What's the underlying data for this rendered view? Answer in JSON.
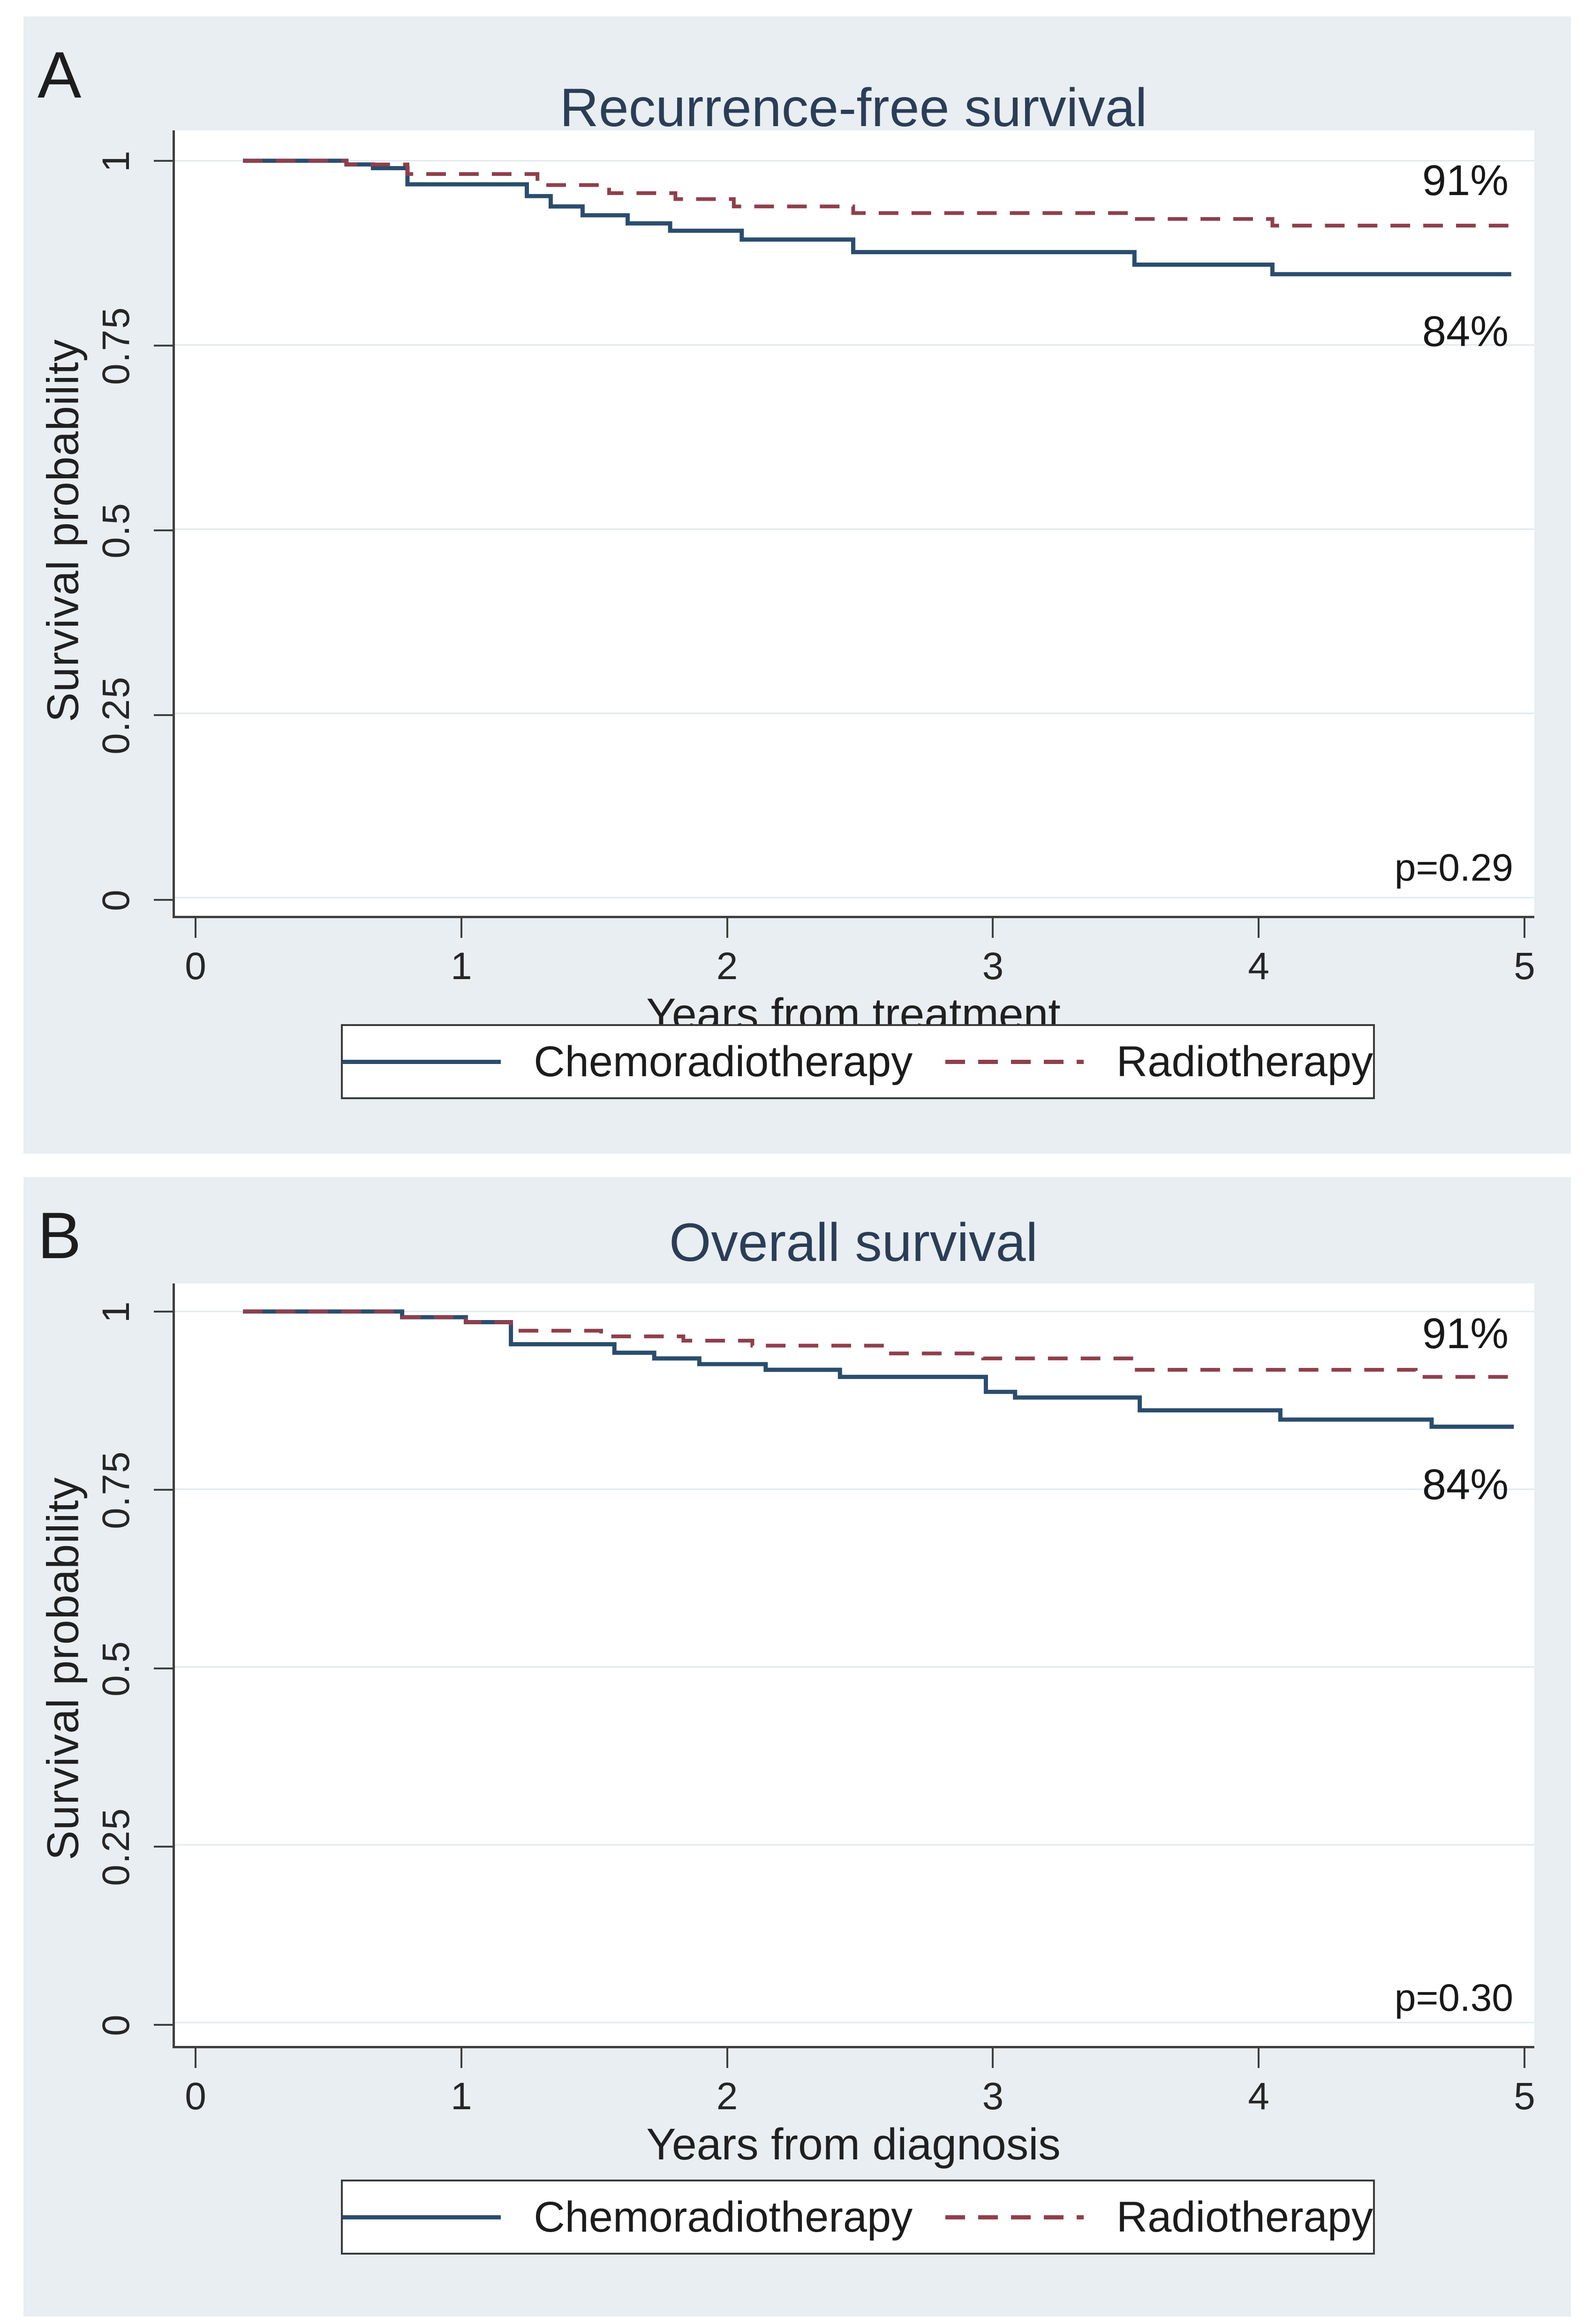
{
  "figure": {
    "background": "#ffffff",
    "card_background": "#e8eef1",
    "navy": "#2a4d6e",
    "maroon": "#8f3f4c",
    "title_color": "#2b3d57",
    "axis_color": "#3f3f3f",
    "grid_color": "#dfe9ee",
    "text_color": "#262626"
  },
  "legend": {
    "items": [
      {
        "label": "Chemoradiotherapy",
        "style": "solid",
        "color": "#2a4d6e"
      },
      {
        "label": "Radiotherapy",
        "style": "dashed",
        "color": "#8f3f4c"
      }
    ]
  },
  "panels": [
    {
      "letter": "A",
      "title": "Recurrence-free survival",
      "xlabel": "Years from treatment",
      "ylabel": "Survival probability",
      "p_value": "p=0.29",
      "upper_label": "91%",
      "lower_label": "84%"
    },
    {
      "letter": "B",
      "title": "Overall survival",
      "xlabel": "Years from diagnosis",
      "ylabel": "Survival probability",
      "p_value": "p=0.30",
      "upper_label": "91%",
      "lower_label": "84%"
    }
  ],
  "chart_data": [
    {
      "type": "line",
      "step": "after",
      "title": "Recurrence-free survival",
      "xlabel": "Years from treatment",
      "ylabel": "Survival probability",
      "xlim": [
        0,
        5
      ],
      "ylim": [
        0,
        1
      ],
      "xticks": [
        0,
        1,
        2,
        3,
        4,
        5
      ],
      "xtick_labels": [
        "0",
        "1",
        "2",
        "3",
        "4",
        "5"
      ],
      "yticks": [
        0,
        0.25,
        0.5,
        0.75,
        1
      ],
      "ytick_labels": [
        "0",
        "0.25",
        "0.5",
        "0.75",
        "1"
      ],
      "grid": "horizontal",
      "legend_position": "bottom",
      "annotations": {
        "radiotherapy_5yr": "91%",
        "chemoradiotherapy_5yr": "84%",
        "p_value": "p=0.29"
      },
      "series": [
        {
          "name": "Chemoradiotherapy",
          "style": "solid",
          "color": "#2a4d6e",
          "points": [
            [
              0.17,
              1.0
            ],
            [
              0.56,
              0.995
            ],
            [
              0.66,
              0.99
            ],
            [
              0.79,
              0.968
            ],
            [
              1.24,
              0.952
            ],
            [
              1.33,
              0.938
            ],
            [
              1.45,
              0.926
            ],
            [
              1.62,
              0.915
            ],
            [
              1.78,
              0.905
            ],
            [
              2.05,
              0.893
            ],
            [
              2.47,
              0.876
            ],
            [
              3.53,
              0.859
            ],
            [
              4.05,
              0.846
            ],
            [
              4.95,
              0.846
            ]
          ]
        },
        {
          "name": "Radiotherapy",
          "style": "dashed",
          "color": "#8f3f4c",
          "points": [
            [
              0.17,
              1.0
            ],
            [
              0.56,
              0.995
            ],
            [
              0.79,
              0.982
            ],
            [
              1.28,
              0.967
            ],
            [
              1.55,
              0.956
            ],
            [
              1.8,
              0.948
            ],
            [
              2.02,
              0.938
            ],
            [
              2.47,
              0.929
            ],
            [
              3.53,
              0.921
            ],
            [
              4.05,
              0.912
            ],
            [
              4.95,
              0.912
            ]
          ]
        }
      ]
    },
    {
      "type": "line",
      "step": "after",
      "title": "Overall survival",
      "xlabel": "Years from diagnosis",
      "ylabel": "Survival probability",
      "xlim": [
        0,
        5
      ],
      "ylim": [
        0,
        1
      ],
      "xticks": [
        0,
        1,
        2,
        3,
        4,
        5
      ],
      "xtick_labels": [
        "0",
        "1",
        "2",
        "3",
        "4",
        "5"
      ],
      "yticks": [
        0,
        0.25,
        0.5,
        0.75,
        1
      ],
      "ytick_labels": [
        "0",
        "0.25",
        "0.5",
        "0.75",
        "1"
      ],
      "grid": "horizontal",
      "legend_position": "bottom",
      "annotations": {
        "radiotherapy_5yr": "91%",
        "chemoradiotherapy_5yr": "84%",
        "p_value": "p=0.30"
      },
      "series": [
        {
          "name": "Chemoradiotherapy",
          "style": "solid",
          "color": "#2a4d6e",
          "points": [
            [
              0.17,
              1.0
            ],
            [
              0.77,
              0.992
            ],
            [
              1.01,
              0.985
            ],
            [
              1.18,
              0.954
            ],
            [
              1.57,
              0.942
            ],
            [
              1.72,
              0.934
            ],
            [
              1.89,
              0.926
            ],
            [
              2.14,
              0.918
            ],
            [
              2.42,
              0.908
            ],
            [
              2.97,
              0.887
            ],
            [
              3.08,
              0.879
            ],
            [
              3.55,
              0.861
            ],
            [
              4.08,
              0.848
            ],
            [
              4.65,
              0.838
            ],
            [
              4.96,
              0.838
            ]
          ]
        },
        {
          "name": "Radiotherapy",
          "style": "dashed",
          "color": "#8f3f4c",
          "points": [
            [
              0.17,
              1.0
            ],
            [
              0.77,
              0.992
            ],
            [
              1.01,
              0.985
            ],
            [
              1.18,
              0.973
            ],
            [
              1.52,
              0.965
            ],
            [
              1.83,
              0.959
            ],
            [
              2.09,
              0.952
            ],
            [
              2.6,
              0.941
            ],
            [
              2.96,
              0.934
            ],
            [
              3.53,
              0.918
            ],
            [
              4.59,
              0.908
            ],
            [
              4.96,
              0.908
            ]
          ]
        }
      ]
    }
  ]
}
